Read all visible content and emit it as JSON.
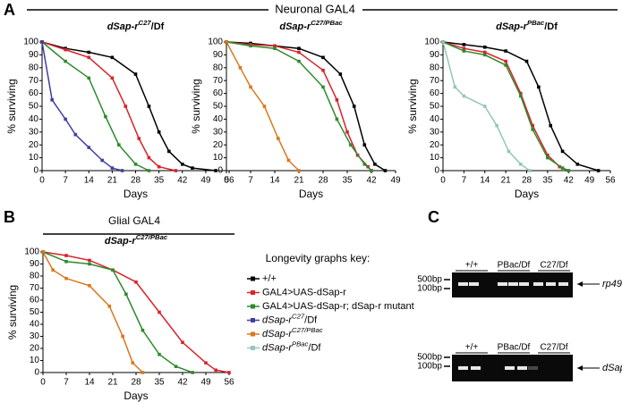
{
  "panel_labels": [
    "A",
    "B",
    "C"
  ],
  "headings": [
    "Neuronal GAL4",
    "Glial GAL4"
  ],
  "chart_data": [
    {
      "type": "line",
      "title": [
        "dSap-r",
        "C27",
        "/Df"
      ],
      "x_label": "Days",
      "y_label": "% surviving",
      "xlim": [
        0,
        56
      ],
      "ylim": [
        0,
        100
      ],
      "xticks": [
        0,
        7,
        14,
        21,
        28,
        35,
        42,
        49,
        56
      ],
      "yticks": [
        0,
        10,
        20,
        30,
        40,
        50,
        60,
        70,
        80,
        90,
        100
      ],
      "series": [
        {
          "color": "#000000",
          "x": [
            0,
            7,
            14,
            21,
            28,
            32,
            35,
            38,
            42,
            45,
            52
          ],
          "values": [
            100,
            95,
            92,
            88,
            75,
            50,
            30,
            15,
            5,
            2,
            0
          ]
        },
        {
          "color": "#d7232b",
          "x": [
            0,
            7,
            14,
            21,
            25,
            29,
            32,
            35,
            40
          ],
          "values": [
            100,
            94,
            88,
            72,
            50,
            25,
            10,
            3,
            0
          ]
        },
        {
          "color": "#2e8b2e",
          "x": [
            0,
            7,
            14,
            19,
            23,
            28,
            32
          ],
          "values": [
            100,
            85,
            72,
            42,
            20,
            5,
            0
          ]
        },
        {
          "color": "#3f3fa6",
          "x": [
            0,
            3,
            7,
            10,
            14,
            18,
            21,
            24
          ],
          "values": [
            100,
            55,
            40,
            28,
            18,
            8,
            2,
            0
          ]
        }
      ]
    },
    {
      "type": "line",
      "title": [
        "dSap-r",
        "C27/PBac"
      ],
      "x_label": "Days",
      "y_label": "% surviving",
      "xlim": [
        0,
        49
      ],
      "ylim": [
        0,
        100
      ],
      "xticks": [
        0,
        7,
        14,
        21,
        28,
        35,
        42,
        49
      ],
      "yticks": [
        0,
        10,
        20,
        30,
        40,
        50,
        60,
        70,
        80,
        90,
        100
      ],
      "series": [
        {
          "color": "#000000",
          "x": [
            0,
            7,
            14,
            21,
            28,
            33,
            37,
            40,
            43,
            46
          ],
          "values": [
            100,
            99,
            97,
            95,
            88,
            75,
            50,
            20,
            5,
            0
          ]
        },
        {
          "color": "#d7232b",
          "x": [
            0,
            7,
            14,
            21,
            28,
            32,
            35,
            38,
            41,
            42
          ],
          "values": [
            100,
            98,
            97,
            92,
            78,
            55,
            30,
            12,
            3,
            0
          ]
        },
        {
          "color": "#2e8b2e",
          "x": [
            0,
            7,
            14,
            21,
            28,
            32,
            36,
            40,
            42
          ],
          "values": [
            100,
            97,
            95,
            85,
            65,
            40,
            20,
            5,
            0
          ]
        },
        {
          "color": "#d9781c",
          "x": [
            0,
            4,
            7,
            11,
            15,
            18,
            21
          ],
          "values": [
            100,
            80,
            65,
            50,
            25,
            8,
            0
          ]
        }
      ]
    },
    {
      "type": "line",
      "title": [
        "dSap-r",
        "PBac",
        "/Df"
      ],
      "x_label": "Days",
      "y_label": "% surviving",
      "xlim": [
        0,
        56
      ],
      "ylim": [
        0,
        100
      ],
      "xticks": [
        0,
        7,
        14,
        21,
        28,
        35,
        42,
        49,
        56
      ],
      "yticks": [
        0,
        10,
        20,
        30,
        40,
        50,
        60,
        70,
        80,
        90,
        100
      ],
      "series": [
        {
          "color": "#000000",
          "x": [
            0,
            7,
            14,
            21,
            28,
            32,
            36,
            40,
            45,
            52
          ],
          "values": [
            100,
            98,
            96,
            93,
            85,
            65,
            35,
            15,
            5,
            0
          ]
        },
        {
          "color": "#d7232b",
          "x": [
            0,
            7,
            14,
            21,
            26,
            30,
            35,
            39,
            42
          ],
          "values": [
            100,
            95,
            92,
            85,
            60,
            35,
            12,
            3,
            0
          ]
        },
        {
          "color": "#2e8b2e",
          "x": [
            0,
            7,
            14,
            21,
            26,
            30,
            35,
            40,
            42
          ],
          "values": [
            100,
            93,
            90,
            82,
            58,
            32,
            10,
            2,
            0
          ]
        },
        {
          "color": "#93c7b8",
          "x": [
            0,
            4,
            7,
            14,
            18,
            22,
            26,
            29
          ],
          "values": [
            100,
            65,
            58,
            50,
            35,
            15,
            5,
            0
          ]
        }
      ]
    },
    {
      "type": "line",
      "title": [
        "dSap-r",
        "C27/PBac"
      ],
      "x_label": "Days",
      "y_label": "% surviving",
      "xlim": [
        0,
        56
      ],
      "ylim": [
        0,
        100
      ],
      "xticks": [
        0,
        7,
        14,
        21,
        28,
        35,
        42,
        49,
        56
      ],
      "yticks": [
        0,
        10,
        20,
        30,
        40,
        50,
        60,
        70,
        80,
        90,
        100
      ],
      "series": [
        {
          "color": "#d7232b",
          "x": [
            0,
            7,
            14,
            21,
            28,
            35,
            42,
            49,
            52,
            56
          ],
          "values": [
            100,
            97,
            93,
            85,
            75,
            50,
            25,
            8,
            2,
            0
          ]
        },
        {
          "color": "#2e8b2e",
          "x": [
            0,
            7,
            14,
            21,
            25,
            30,
            35,
            40,
            45
          ],
          "values": [
            100,
            92,
            90,
            85,
            65,
            35,
            15,
            5,
            0
          ]
        },
        {
          "color": "#d9781c",
          "x": [
            0,
            3,
            7,
            14,
            20,
            24,
            27,
            30
          ],
          "values": [
            100,
            85,
            78,
            72,
            55,
            30,
            8,
            0
          ]
        }
      ]
    }
  ],
  "legend": {
    "title": "Longevity graphs key:",
    "entries": [
      {
        "label": [
          "+/+"
        ],
        "color": "#000000"
      },
      {
        "label": [
          "GAL4>UAS-dSap-r"
        ],
        "color": "#d7232b"
      },
      {
        "label": [
          "GAL4>UAS-dSap-r; dSap-r mutant"
        ],
        "color": "#2e8b2e"
      },
      {
        "label": [
          "dSap-r",
          "C27",
          "/Df"
        ],
        "color": "#3f3fa6"
      },
      {
        "label": [
          "dSap-r",
          "C27/PBac"
        ],
        "color": "#d9781c"
      },
      {
        "label": [
          "dSap-r",
          "PBac",
          "/Df"
        ],
        "color": "#93c7b8"
      }
    ]
  },
  "gel": {
    "lanes": [
      "+/+",
      "PBac/Df",
      "C27/Df"
    ],
    "blots": [
      {
        "label": "rp49",
        "size_markers": [
          "500bp",
          "100bp"
        ]
      },
      {
        "label": "dSap-r",
        "size_markers": [
          "500bp",
          "100bp"
        ]
      }
    ]
  }
}
